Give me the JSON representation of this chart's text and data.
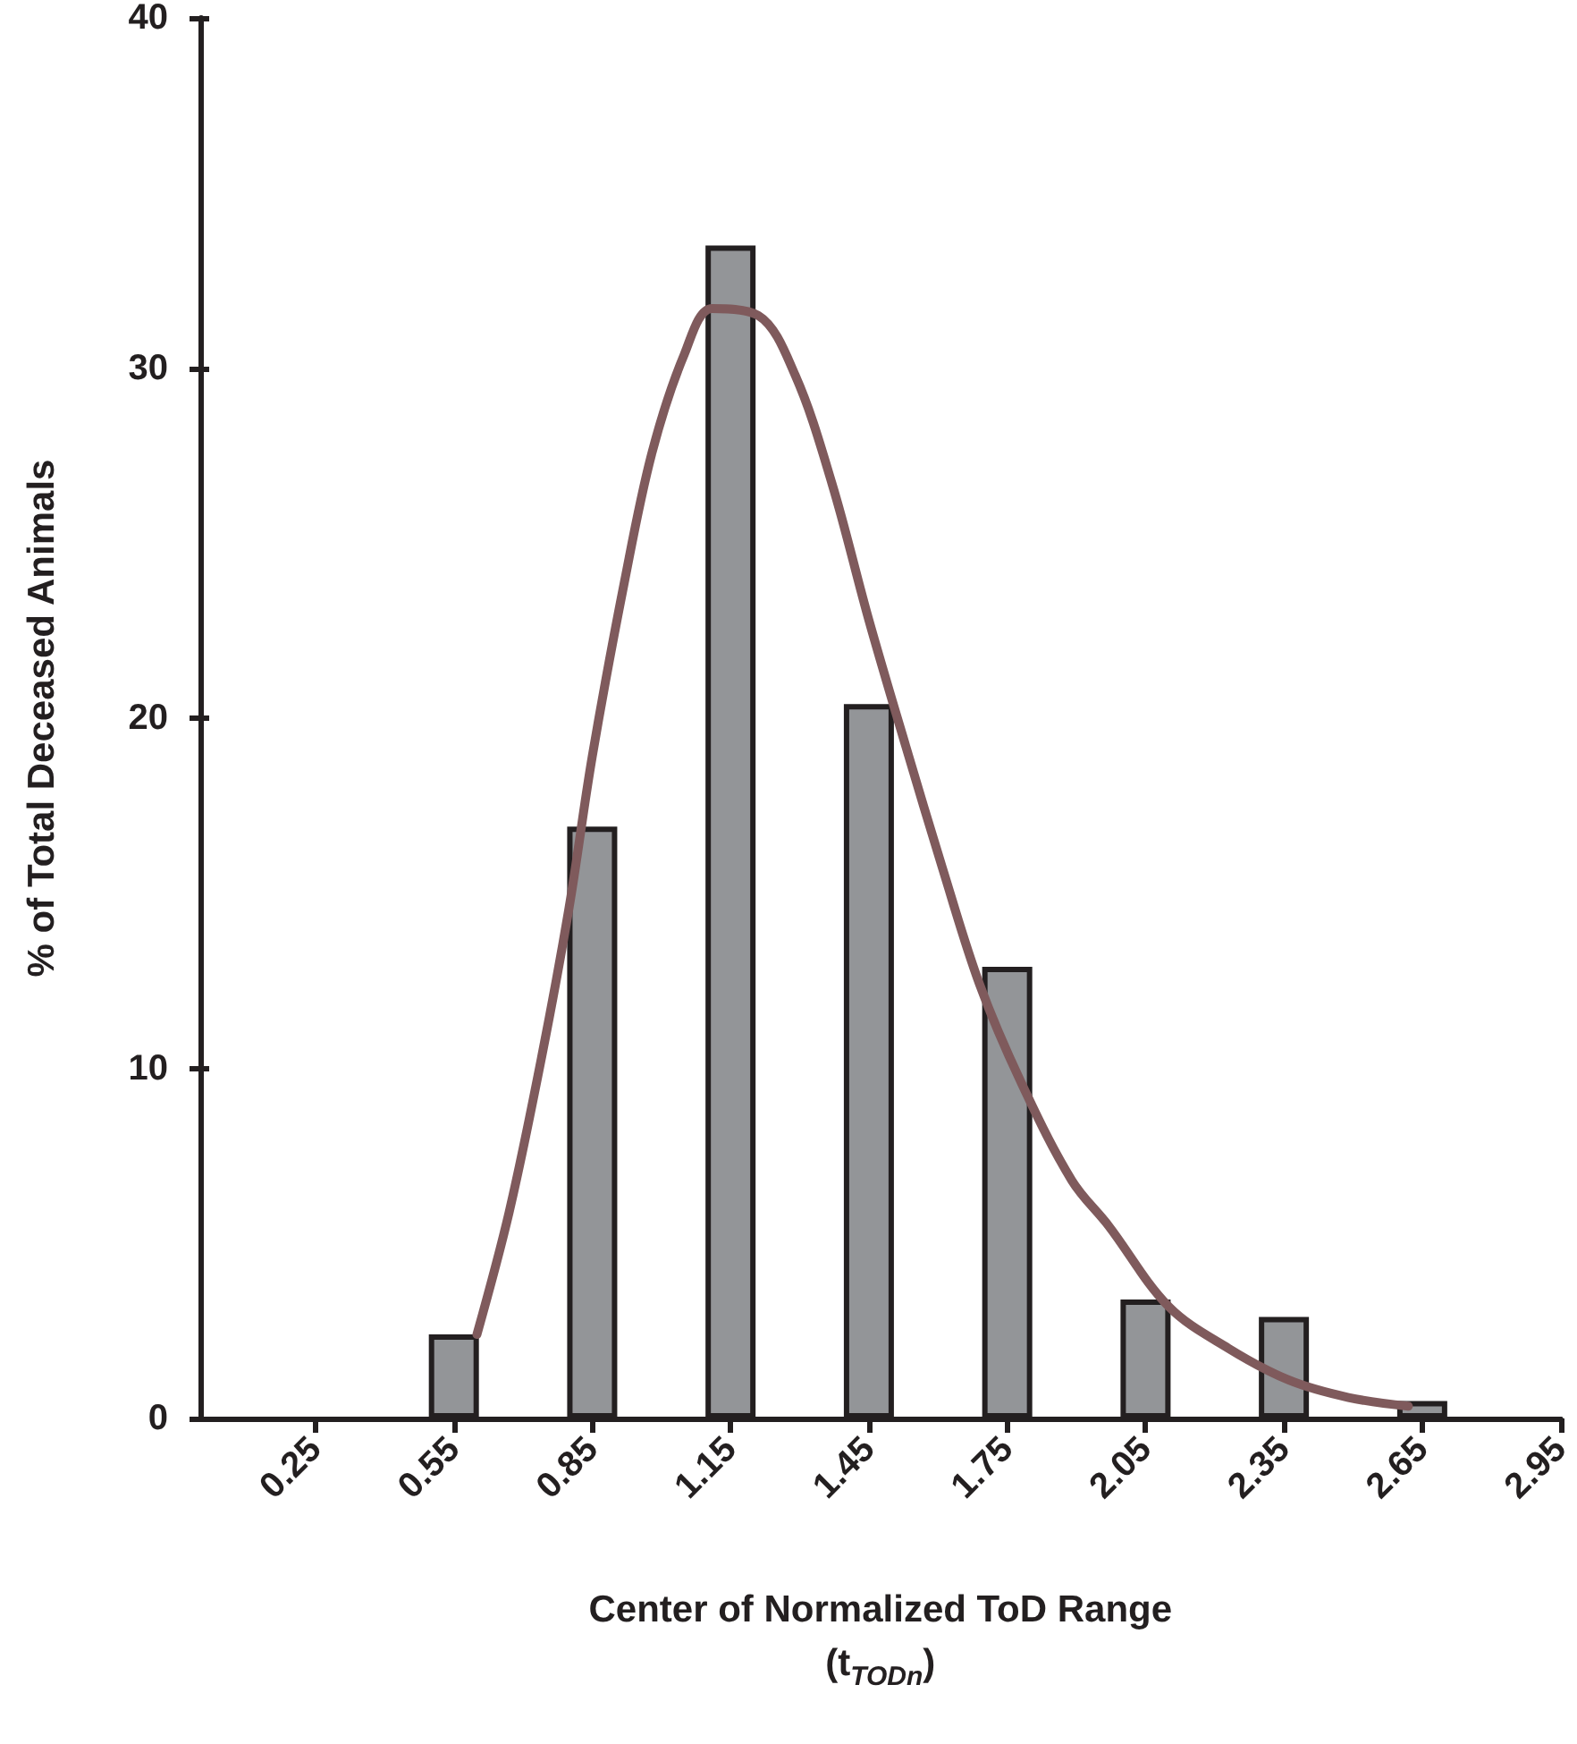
{
  "chart_data": {
    "type": "bar",
    "xlabel": "Center of Normalized ToD Range\n(t$_{TODn}$)",
    "ylabel": "% of Total Deceased Animals",
    "x": [
      0.55,
      0.85,
      1.15,
      1.45,
      1.75,
      2.05,
      2.35,
      2.65
    ],
    "xlim": [
      0,
      2.95
    ],
    "xticks": [
      0.25,
      0.55,
      0.85,
      1.15,
      1.45,
      1.75,
      2.05,
      2.35,
      2.65,
      2.95
    ],
    "ylim": [
      0,
      40
    ],
    "yticks": [
      0,
      10,
      20,
      30,
      40
    ],
    "grid": false,
    "series": [
      {
        "color": "#939598",
        "values": [
          2.4,
          16.9,
          33.5,
          20.4,
          12.9,
          3.4,
          2.9,
          0.5
        ]
      },
      {
        "type": "line",
        "color": "#7f5a5c",
        "marker": "none",
        "line_style": "solid",
        "x": [
          0.6,
          0.67,
          0.74,
          0.8,
          0.85,
          0.92,
          0.98,
          1.05,
          1.11,
          1.21,
          1.29,
          1.37,
          1.45,
          1.53,
          1.61,
          1.69,
          1.78,
          1.89,
          1.97,
          2.1,
          2.23,
          2.36,
          2.49,
          2.62
        ],
        "values": [
          2.4,
          5.9,
          10.3,
          14.6,
          18.9,
          23.9,
          27.6,
          30.4,
          31.7,
          31.5,
          29.8,
          26.7,
          22.8,
          19.2,
          15.7,
          12.4,
          9.6,
          6.8,
          5.5,
          3.2,
          2.0,
          1.1,
          0.6,
          0.35
        ]
      }
    ]
  }
}
